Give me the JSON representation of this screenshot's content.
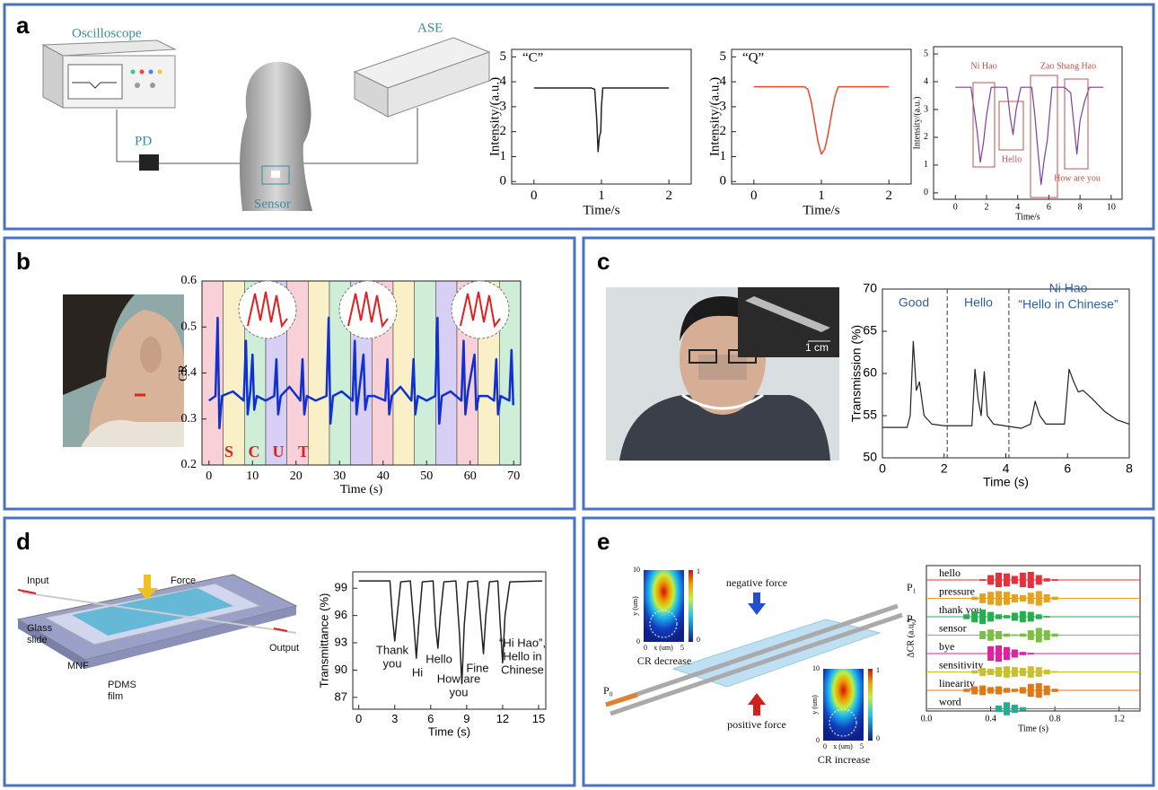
{
  "panel_labels": [
    "a",
    "b",
    "c",
    "d",
    "e"
  ],
  "diagram_a": {
    "oscilloscope": "Oscilloscope",
    "ase": "ASE",
    "pd": "PD",
    "sensor": "Sensor"
  },
  "diagram_b": {
    "letters": [
      "S",
      "C",
      "U",
      "T"
    ]
  },
  "photo_c": {
    "scale": "1 cm"
  },
  "diagram_d": {
    "input": "Input",
    "force": "Force",
    "glass": "Glass",
    "slide": "slide",
    "mnf": "MNF",
    "pdms": "PDMS",
    "film": "film",
    "output": "Output"
  },
  "diagram_e": {
    "p1": "P₁",
    "p2": "P₂",
    "p0": "P₀",
    "negative": "negative force",
    "positive": "positive force",
    "decrease": "CR decrease",
    "increase": "CR increase",
    "inset_ticks": [
      "10",
      "0",
      "0",
      "5",
      "1",
      "0"
    ],
    "inset_ylabel": "y (um)",
    "inset_xlabel": "x (um)"
  },
  "chart_data": [
    {
      "type": "line",
      "annotation": "“C”",
      "xlabel": "Time/s",
      "ylabel": "Intensity/(a.u.)",
      "color": "#222222",
      "xlim": [
        -0.33,
        2.33
      ],
      "ylim": [
        -0.1,
        5.3
      ],
      "xticks": [
        0,
        1,
        2
      ],
      "yticks": [
        0,
        1,
        2,
        3,
        4,
        5
      ],
      "x": [
        0,
        0.85,
        0.9,
        0.93,
        0.95,
        0.97,
        0.99,
        1.0,
        1.02,
        1.05,
        2.0
      ],
      "values": [
        3.75,
        3.75,
        3.7,
        2.5,
        1.2,
        1.8,
        2.0,
        3.0,
        3.75,
        3.75,
        3.75
      ]
    },
    {
      "type": "line",
      "annotation": "“Q”",
      "xlabel": "Time/s",
      "ylabel": "Intensity/(a.u.)",
      "color": "#e8472a",
      "xlim": [
        -0.33,
        2.33
      ],
      "ylim": [
        -0.1,
        5.3
      ],
      "xticks": [
        0,
        1,
        2
      ],
      "yticks": [
        0,
        1,
        2,
        3,
        4,
        5
      ],
      "x": [
        0,
        0.75,
        0.8,
        0.85,
        0.9,
        0.95,
        1.0,
        1.05,
        1.1,
        1.15,
        1.2,
        1.25,
        2.0
      ],
      "values": [
        3.8,
        3.8,
        3.7,
        3.2,
        2.4,
        1.6,
        1.1,
        1.3,
        1.9,
        2.7,
        3.4,
        3.8,
        3.8
      ]
    },
    {
      "type": "line",
      "annotations": [
        "Ni Hao",
        "Zao Shang Hao",
        "Hello",
        "How are you"
      ],
      "xlabel": "Time/s",
      "ylabel": "Intensity/(a.u.)",
      "color": "#7a3fa0",
      "xlim": [
        -1.4,
        10.7
      ],
      "ylim": [
        -0.23,
        5.26
      ],
      "xticks": [
        0,
        2,
        4,
        6,
        8,
        10
      ],
      "yticks": [
        0,
        1,
        2,
        3,
        4,
        5
      ],
      "x": [
        0,
        1.0,
        1.2,
        1.4,
        1.6,
        1.8,
        2.0,
        2.3,
        2.6,
        3.3,
        3.5,
        3.7,
        3.9,
        4.2,
        4.9,
        5.1,
        5.3,
        5.5,
        5.7,
        5.9,
        6.2,
        7.0,
        7.4,
        7.6,
        7.8,
        8.0,
        8.3,
        8.6,
        9.0,
        9.5
      ],
      "values": [
        3.8,
        3.8,
        3.0,
        2.2,
        1.1,
        1.8,
        2.8,
        3.8,
        3.8,
        3.8,
        2.8,
        2.1,
        3.0,
        3.8,
        3.8,
        2.8,
        1.5,
        0.3,
        1.2,
        1.9,
        3.8,
        3.8,
        3.6,
        2.5,
        1.4,
        2.6,
        3.3,
        3.8,
        3.8,
        3.8
      ]
    },
    {
      "type": "line",
      "xlabel": "Time (s)",
      "ylabel": "CR",
      "color": "#1030d0",
      "xlim": [
        -1.6,
        71.6
      ],
      "ylim": [
        0.2,
        0.6
      ],
      "xticks": [
        0,
        10,
        20,
        30,
        40,
        50,
        60,
        70
      ],
      "yticks": [
        0.2,
        0.3,
        0.4,
        0.5,
        0.6
      ],
      "x": [
        0,
        1.5,
        2,
        2.4,
        3,
        5.5,
        8,
        8.5,
        8.9,
        9.5,
        10,
        10.4,
        11,
        13,
        15,
        15.5,
        15.9,
        16.5,
        18.5,
        21,
        21.5,
        21.9,
        22.5,
        24.5,
        27,
        27.5,
        27.9,
        28.5,
        30.5,
        33,
        33.5,
        33.9,
        34.5,
        35.5,
        35.9,
        36.5,
        38,
        40.5,
        41,
        41.4,
        42,
        44,
        46.5,
        47,
        47.4,
        48,
        50,
        52,
        52.5,
        52.9,
        53.5,
        55.5,
        58,
        58.5,
        58.9,
        59.5,
        61,
        61.4,
        62,
        64,
        65.5,
        66,
        66.4,
        67,
        69,
        69.5,
        69.9
      ],
      "values": [
        0.34,
        0.35,
        0.52,
        0.28,
        0.35,
        0.36,
        0.34,
        0.47,
        0.31,
        0.36,
        0.44,
        0.32,
        0.35,
        0.34,
        0.35,
        0.43,
        0.31,
        0.35,
        0.37,
        0.34,
        0.43,
        0.31,
        0.35,
        0.34,
        0.35,
        0.52,
        0.29,
        0.35,
        0.36,
        0.34,
        0.47,
        0.31,
        0.36,
        0.44,
        0.32,
        0.35,
        0.35,
        0.34,
        0.43,
        0.31,
        0.35,
        0.37,
        0.34,
        0.43,
        0.31,
        0.35,
        0.34,
        0.35,
        0.52,
        0.29,
        0.35,
        0.36,
        0.34,
        0.47,
        0.31,
        0.36,
        0.44,
        0.32,
        0.35,
        0.35,
        0.34,
        0.43,
        0.31,
        0.35,
        0.34,
        0.45,
        0.33
      ]
    },
    {
      "type": "line",
      "annotations": [
        "Good",
        "Hello",
        "Ni Hao",
        "“Hello in Chinese”"
      ],
      "xlabel": "Time (s)",
      "ylabel": "Transmission (%)",
      "color": "#222222",
      "xlim": [
        0,
        8
      ],
      "ylim": [
        50,
        70
      ],
      "xticks": [
        0,
        2,
        4,
        6,
        8
      ],
      "yticks": [
        50,
        55,
        60,
        65,
        70
      ],
      "vlines": [
        2.1,
        4.1
      ],
      "x": [
        0,
        0.8,
        0.9,
        1.0,
        1.1,
        1.2,
        1.35,
        1.6,
        2.0,
        2.9,
        3.0,
        3.1,
        3.2,
        3.3,
        3.4,
        3.6,
        4.5,
        4.8,
        4.95,
        5.1,
        5.3,
        5.9,
        6.05,
        6.2,
        6.35,
        6.5,
        6.8,
        7.2,
        7.6,
        8.0
      ],
      "values": [
        53.6,
        53.6,
        55,
        63.8,
        58,
        59,
        55,
        54,
        53.8,
        53.8,
        60.5,
        57,
        55,
        60.2,
        55,
        54,
        53.5,
        54,
        56.7,
        55,
        54,
        54,
        60.5,
        59,
        57.8,
        58,
        57,
        55.5,
        54.5,
        54
      ]
    },
    {
      "type": "line",
      "annotations": [
        [
          "Thank",
          "you"
        ],
        [
          "Hi"
        ],
        [
          "Hello"
        ],
        [
          "How are",
          "you"
        ],
        [
          "Fine"
        ],
        [
          "“Hi Hao”,",
          "Hello in",
          "Chinese"
        ]
      ],
      "xlabel": "Time (s)",
      "ylabel": "Transmittance (%)",
      "color": "#222222",
      "xlim": [
        -0.5,
        15.6
      ],
      "ylim": [
        85.7,
        100.8
      ],
      "xticks": [
        0,
        3,
        6,
        9,
        12,
        15
      ],
      "yticks": [
        87,
        90,
        93,
        96,
        99
      ],
      "x": [
        0,
        2.6,
        2.8,
        3.0,
        3.2,
        3.5,
        4.3,
        4.6,
        4.8,
        5.0,
        5.3,
        6.2,
        6.4,
        6.6,
        6.8,
        7.1,
        8.1,
        8.4,
        8.6,
        8.8,
        9.1,
        9.9,
        10.2,
        10.4,
        10.6,
        10.9,
        11.6,
        11.8,
        12.0,
        12.2,
        12.6,
        15.3
      ],
      "values": [
        99.8,
        99.8,
        96,
        93.2,
        96,
        99.7,
        99.8,
        95,
        91.3,
        95,
        99.7,
        99.8,
        95,
        92.4,
        96,
        99.7,
        99.8,
        94,
        88.5,
        95,
        99.7,
        99.8,
        95,
        91.8,
        96,
        99.7,
        99.8,
        95,
        90.8,
        96,
        99.7,
        99.8
      ]
    },
    {
      "type": "waveform",
      "xlabel": "Time (s)",
      "ylabel": "ΔCR (a.u.)",
      "xlim": [
        0,
        1.33
      ],
      "xticks": [
        {
          "value": 0,
          "label": "0.0"
        },
        0.4,
        0.8,
        1.2
      ],
      "x": [
        0,
        0.05,
        0.1,
        0.15,
        0.2,
        0.25,
        0.3,
        0.35,
        0.4,
        0.45,
        0.5,
        0.55,
        0.6,
        0.65,
        0.7,
        0.75,
        0.8,
        0.85,
        0.9,
        0.95,
        1.0,
        1.05,
        1.1,
        1.15,
        1.2
      ],
      "series": [
        {
          "name": "hello",
          "color": "#e8303a",
          "values": [
            0,
            0,
            0,
            0,
            0,
            0,
            0,
            0.1,
            0.6,
            0.9,
            0.8,
            0.5,
            0.9,
            1.0,
            0.6,
            0.2,
            0.1,
            0,
            0,
            0,
            0,
            0,
            0,
            0,
            0
          ]
        },
        {
          "name": "pressure",
          "color": "#e8a020",
          "values": [
            0,
            0,
            0,
            0,
            0,
            0,
            0.2,
            0.6,
            0.8,
            0.9,
            0.8,
            0.5,
            0.4,
            0.7,
            0.9,
            0.5,
            0.2,
            0,
            0,
            0,
            0,
            0,
            0,
            0,
            0
          ]
        },
        {
          "name": "thank you",
          "color": "#22b14c",
          "values": [
            0,
            0,
            0,
            0,
            0,
            0.3,
            0.7,
            0.9,
            0.6,
            0.3,
            0.2,
            0.5,
            0.7,
            0.6,
            0.3,
            0.1,
            0,
            0,
            0,
            0,
            0,
            0,
            0,
            0,
            0
          ]
        },
        {
          "name": "sensor",
          "color": "#7ac142",
          "values": [
            0,
            0,
            0,
            0,
            0,
            0,
            0,
            0.5,
            0.7,
            0.5,
            0.2,
            0.1,
            0.2,
            0.6,
            0.9,
            0.6,
            0.2,
            0,
            0,
            0,
            0,
            0,
            0,
            0,
            0
          ]
        },
        {
          "name": "bye",
          "color": "#e020a0",
          "values": [
            0,
            0,
            0,
            0,
            0,
            0,
            0,
            0,
            0.9,
            1.0,
            0.8,
            0.5,
            0.2,
            0.1,
            0,
            0,
            0,
            0,
            0,
            0,
            0,
            0,
            0,
            0,
            0
          ]
        },
        {
          "name": "sensitivity",
          "color": "#c8c030",
          "values": [
            0,
            0,
            0,
            0,
            0,
            0,
            0.2,
            0.5,
            0.4,
            0.6,
            0.7,
            0.6,
            0.5,
            0.7,
            0.6,
            0.3,
            0.1,
            0,
            0,
            0,
            0,
            0,
            0,
            0,
            0
          ]
        },
        {
          "name": "linearity",
          "color": "#e07818",
          "values": [
            0,
            0,
            0,
            0,
            0,
            0.2,
            0.5,
            0.6,
            0.4,
            0.5,
            0.3,
            0.2,
            0.4,
            0.8,
            0.9,
            0.6,
            0.2,
            0,
            0,
            0,
            0,
            0,
            0,
            0,
            0
          ]
        },
        {
          "name": "word",
          "color": "#20b090",
          "values": [
            0,
            0,
            0,
            0,
            0,
            0,
            0,
            0,
            0,
            0.4,
            0.8,
            0.5,
            0.2,
            0,
            0,
            0,
            0,
            0,
            0,
            0,
            0,
            0,
            0,
            0,
            0
          ]
        }
      ]
    }
  ]
}
